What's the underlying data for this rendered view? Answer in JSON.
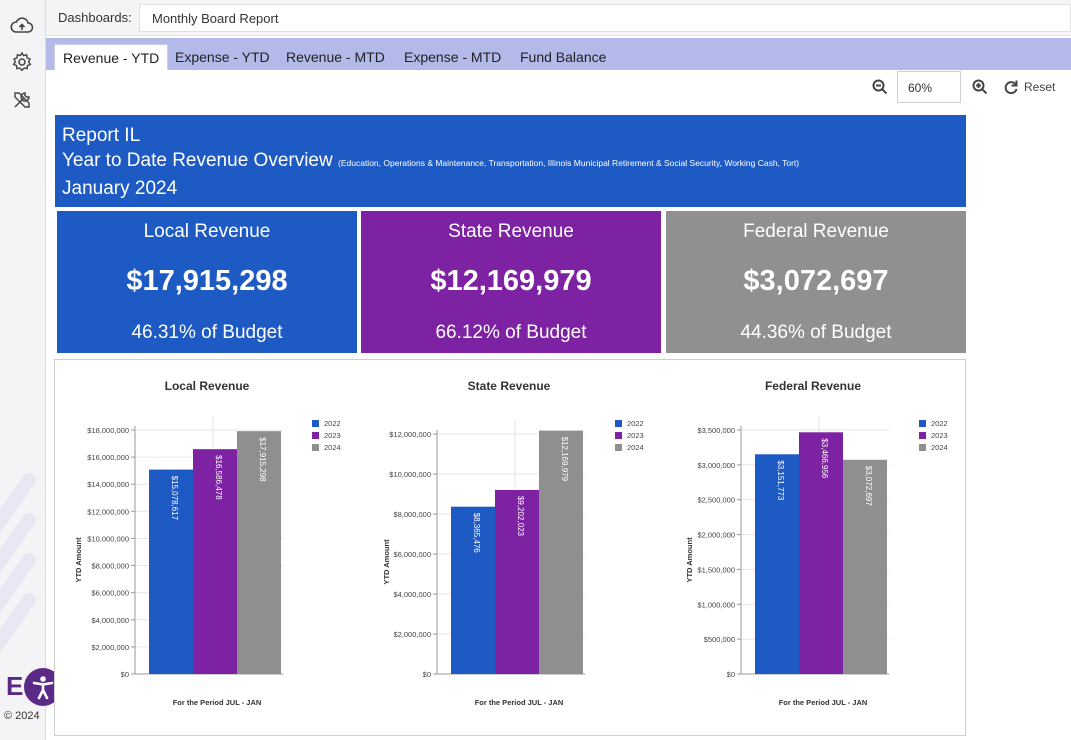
{
  "rail": {
    "icons": [
      "cloud-upload-icon",
      "gear-icon",
      "tools-icon"
    ],
    "accessibility_icon": "accessibility-icon",
    "logo_letter": "E",
    "copyright": "© 2024"
  },
  "topbar": {
    "dashboards_label": "Dashboards:",
    "selected_dashboard": "Monthly Board Report"
  },
  "tabs": [
    {
      "label": "Revenue - YTD",
      "active": true
    },
    {
      "label": "Expense - YTD",
      "active": false
    },
    {
      "label": "Revenue - MTD",
      "active": false
    },
    {
      "label": "Expense - MTD",
      "active": false
    },
    {
      "label": "Fund Balance",
      "active": false
    }
  ],
  "zoom": {
    "value": "60%",
    "zoom_out_icon": "zoom-out-icon",
    "zoom_in_icon": "zoom-in-icon",
    "reset_icon": "refresh-icon",
    "reset_label": "Reset"
  },
  "report": {
    "line1": "Report IL",
    "line2_main": "Year to Date Revenue Overview",
    "line2_note": "(Education, Operations & Maintenance, Transportation, Illinois Municipal Retirement & Social Security, Working Cash, Tort)",
    "line3": "January 2024"
  },
  "kpis": [
    {
      "title": "Local Revenue",
      "value": "$17,915,298",
      "pct": "46.31% of Budget",
      "color": "#1e5ac4"
    },
    {
      "title": "State Revenue",
      "value": "$12,169,979",
      "pct": "66.12% of Budget",
      "color": "#7d22a2"
    },
    {
      "title": "Federal Revenue",
      "value": "$3,072,697",
      "pct": "44.36% of Budget",
      "color": "#909090"
    }
  ],
  "colors": {
    "2022": "#1e5ac4",
    "2023": "#7d22a2",
    "2024": "#8f8f8f"
  },
  "chart_data": [
    {
      "type": "bar",
      "title": "Local Revenue",
      "xlabel": "For the Period JUL - JAN",
      "ylabel": "YTD Amount",
      "series": [
        {
          "name": "2022",
          "values": [
            15078617
          ],
          "label": "$15,078,617"
        },
        {
          "name": "2023",
          "values": [
            16586478
          ],
          "label": "$16,586,478"
        },
        {
          "name": "2024",
          "values": [
            17915298
          ],
          "label": "$17,915,298"
        }
      ],
      "ylim": [
        0,
        18000000
      ],
      "yticks": [
        0,
        2000000,
        4000000,
        6000000,
        8000000,
        10000000,
        12000000,
        14000000,
        16000000,
        18000000
      ],
      "ytick_labels": [
        "$0",
        "$2,000,000",
        "$4,000,000",
        "$6,000,000",
        "$8,000,000",
        "$10,000,000",
        "$12,000,000",
        "$14,000,000",
        "$16,000,000",
        "$18,000,000"
      ],
      "legend": "top-right"
    },
    {
      "type": "bar",
      "title": "State Revenue",
      "xlabel": "For the Period JUL - JAN",
      "ylabel": "YTD Amount",
      "series": [
        {
          "name": "2022",
          "values": [
            8365476
          ],
          "label": "$8,365,476"
        },
        {
          "name": "2023",
          "values": [
            9202023
          ],
          "label": "$9,202,023"
        },
        {
          "name": "2024",
          "values": [
            12169979
          ],
          "label": "$12,169,979"
        }
      ],
      "ylim": [
        0,
        12000000
      ],
      "yticks": [
        0,
        2000000,
        4000000,
        6000000,
        8000000,
        10000000,
        12000000
      ],
      "ytick_labels": [
        "$0",
        "$2,000,000",
        "$4,000,000",
        "$6,000,000",
        "$8,000,000",
        "$10,000,000",
        "$12,000,000"
      ],
      "legend": "top-right"
    },
    {
      "type": "bar",
      "title": "Federal Revenue",
      "xlabel": "For the Period JUL - JAN",
      "ylabel": "YTD Amount",
      "series": [
        {
          "name": "2022",
          "values": [
            3151773
          ],
          "label": "$3,151,773"
        },
        {
          "name": "2023",
          "values": [
            3466956
          ],
          "label": "$3,466,956"
        },
        {
          "name": "2024",
          "values": [
            3072697
          ],
          "label": "$3,072,697"
        }
      ],
      "ylim": [
        0,
        3500000
      ],
      "yticks": [
        0,
        500000,
        1000000,
        1500000,
        2000000,
        2500000,
        3000000,
        3500000
      ],
      "ytick_labels": [
        "$0",
        "$500,000",
        "$1,000,000",
        "$1,500,000",
        "$2,000,000",
        "$2,500,000",
        "$3,000,000",
        "$3,500,000"
      ],
      "legend": "top-right"
    }
  ]
}
